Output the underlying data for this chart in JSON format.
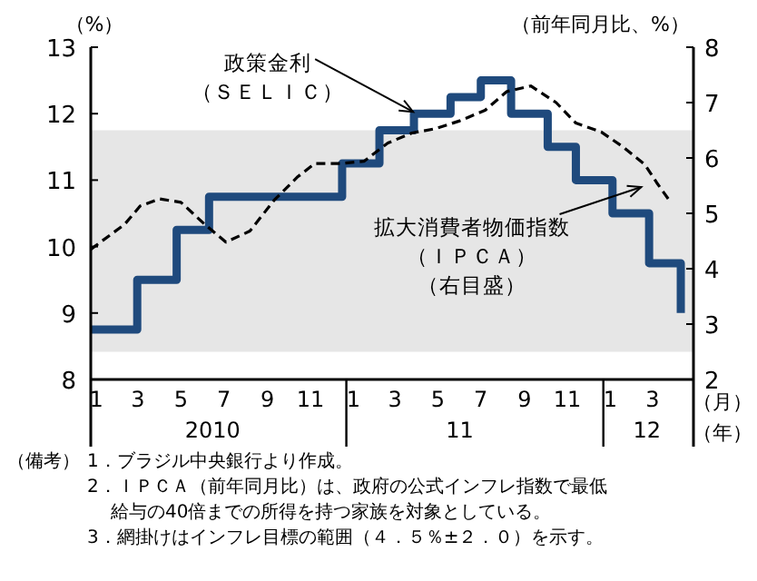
{
  "chart_data": {
    "type": "step",
    "xlabel": "（月）",
    "x2label": "（年）",
    "x2lim": [
      "2009-12-24",
      "2012-04-28"
    ],
    "ylabel": "（%）",
    "y2label": "（前年同月比、%）",
    "xlim": [
      "2009-12-24",
      "2012-04-28"
    ],
    "xticks": [
      {
        "value": "2010-01-01",
        "label": "1"
      },
      {
        "value": "2010-03-01",
        "label": "3"
      },
      {
        "value": "2010-05-01",
        "label": "5"
      },
      {
        "value": "2010-07-01",
        "label": "7"
      },
      {
        "value": "2010-09-01",
        "label": "9"
      },
      {
        "value": "2010-11-01",
        "label": "11"
      },
      {
        "value": "2011-01-01",
        "label": "1"
      },
      {
        "value": "2011-03-01",
        "label": "3"
      },
      {
        "value": "2011-05-01",
        "label": "5"
      },
      {
        "value": "2011-07-01",
        "label": "7"
      },
      {
        "value": "2011-09-01",
        "label": "9"
      },
      {
        "value": "2011-11-01",
        "label": "11"
      },
      {
        "value": "2012-01-01",
        "label": "1"
      },
      {
        "value": "2012-03-01",
        "label": "3"
      }
    ],
    "x2ticks": [
      {
        "value": "2010-06-15",
        "label": "2010"
      },
      {
        "value": "2011-06-01",
        "label": "11"
      },
      {
        "value": "2012-02-22",
        "label": "12"
      }
    ],
    "ylim": [
      8,
      13
    ],
    "yticks": [
      8,
      9,
      10,
      11,
      12,
      13
    ],
    "y2lim": [
      2,
      8
    ],
    "y2ticks": [
      2,
      3,
      4,
      5,
      6,
      7,
      8
    ],
    "grid": false,
    "bands": [
      {
        "axis": "y2",
        "from": 2.5,
        "to": 6.5,
        "color": "#e6e6e6"
      }
    ],
    "series": [
      {
        "type": "step",
        "color": "#1f4a7d",
        "line_style": "solid",
        "x": [
          "2009-12-24",
          "2010-02-28",
          "2010-04-25",
          "2010-06-10",
          "2010-12-16",
          "2011-02-07",
          "2011-03-28",
          "2011-05-19",
          "2011-07-01",
          "2011-08-13",
          "2011-10-04",
          "2011-11-13",
          "2012-01-04",
          "2012-02-25",
          "2012-04-10",
          "2012-04-10"
        ],
        "values": [
          8.75,
          9.5,
          10.25,
          10.75,
          11.25,
          11.75,
          12,
          12.25,
          12.5,
          12,
          11.5,
          11,
          10.5,
          9.75,
          9,
          9
        ]
      },
      {
        "type": "line",
        "axis": "y2",
        "color": "#000000",
        "line_style": "dashed",
        "x": [
          "2009-12-24",
          "2010-02-10",
          "2010-03-04",
          "2010-04-01",
          "2010-05-01",
          "2010-06-04",
          "2010-07-04",
          "2010-08-07",
          "2010-09-10",
          "2010-10-13",
          "2010-11-07",
          "2010-12-13",
          "2011-01-16",
          "2011-02-19",
          "2011-03-25",
          "2011-04-28",
          "2011-06-01",
          "2011-07-07",
          "2011-08-07",
          "2011-09-10",
          "2011-10-16",
          "2011-11-13",
          "2011-12-19",
          "2012-01-19",
          "2012-02-19",
          "2012-03-07",
          "2012-03-25"
        ],
        "values": [
          4.35,
          4.8,
          5.13,
          5.26,
          5.2,
          4.8,
          4.48,
          4.68,
          5.23,
          5.65,
          5.9,
          5.9,
          5.94,
          6.27,
          6.45,
          6.53,
          6.67,
          6.86,
          7.2,
          7.3,
          7.0,
          6.63,
          6.47,
          6.2,
          5.88,
          5.55,
          5.23
        ]
      }
    ],
    "annotations": [
      "（備考）",
      "1．ブラジル中央銀行より作成。",
      "2．ＩＰＣＡ（前年同月比）は、政府の公式インフレ指数で最低給与の40倍までの所得を持つ家族を対象としている。",
      "3．網掛けはインフレ目標の範囲（４．５％±２．０）を示す。",
      {
        "text": "政策金利",
        "x": "2011-04-01",
        "y": 12
      },
      "（ＳＥＬＩＣ）",
      {
        "text": "拡大消費者物価指数",
        "x": "2012-02-19",
        "y": 10.95
      },
      "（ＩＰＣＡ）",
      "（右目盛）"
    ]
  }
}
